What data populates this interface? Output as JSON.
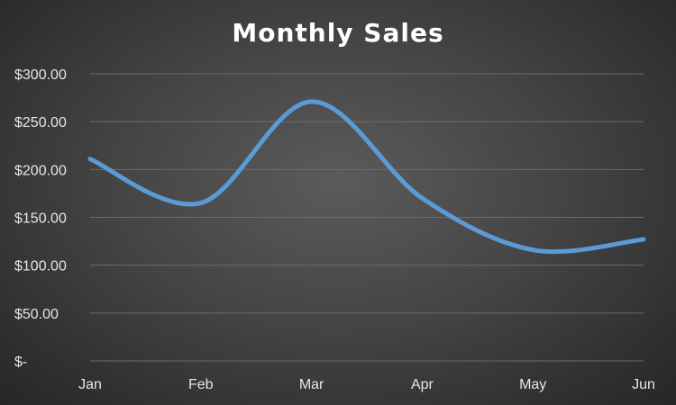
{
  "chart_data": {
    "type": "line",
    "title": "Monthly Sales",
    "categories": [
      "Jan",
      "Feb",
      "Mar",
      "Apr",
      "May",
      "Jun"
    ],
    "series": [
      {
        "values": [
          211,
          165,
          271,
          170,
          116,
          127
        ]
      }
    ],
    "ylim": [
      0,
      300
    ],
    "y_ticks": [
      0,
      50,
      100,
      150,
      200,
      250,
      300
    ],
    "y_tick_labels": [
      "$-",
      "$50.00",
      "$100.00",
      "$150.00",
      "$200.00",
      "$250.00",
      "$300.00"
    ],
    "xlabel": "",
    "ylabel": "",
    "grid": true,
    "line_style": "smooth",
    "colors": {
      "line": "#5b9bd5",
      "background": "#404040",
      "grid": "#6b6b6b",
      "text": "#e6e6e6"
    }
  }
}
